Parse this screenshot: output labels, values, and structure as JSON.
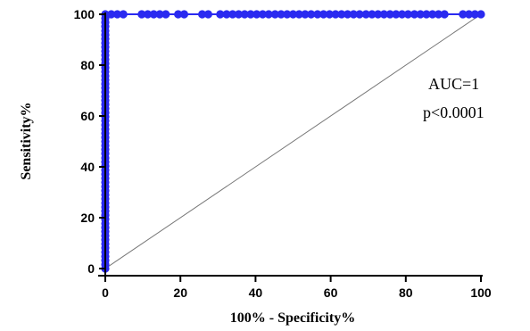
{
  "chart_data": {
    "type": "scatter",
    "title": "",
    "xlabel": "100% - Specificity%",
    "ylabel": "Sensitivity%",
    "xlim": [
      0,
      100
    ],
    "ylim": [
      0,
      100
    ],
    "x_ticks": [
      0,
      20,
      40,
      60,
      80,
      100
    ],
    "y_ticks": [
      0,
      20,
      40,
      60,
      80,
      100
    ],
    "grid": false,
    "legend": "none",
    "annotations": [
      "AUC=1",
      "p<0.0001"
    ],
    "reference_line": {
      "x": [
        0,
        100
      ],
      "y": [
        0,
        100
      ],
      "color": "#777777"
    },
    "series": [
      {
        "color": "#2a2af0",
        "points": [
          {
            "x": 0,
            "y": 0
          },
          {
            "x": 0,
            "y": 1.6
          },
          {
            "x": 0,
            "y": 3.2
          },
          {
            "x": 0,
            "y": 4.8
          },
          {
            "x": 0,
            "y": 6.5
          },
          {
            "x": 0,
            "y": 8.1
          },
          {
            "x": 0,
            "y": 9.7
          },
          {
            "x": 0,
            "y": 11.3
          },
          {
            "x": 0,
            "y": 12.9
          },
          {
            "x": 0,
            "y": 14.5
          },
          {
            "x": 0,
            "y": 16.1
          },
          {
            "x": 0,
            "y": 17.7
          },
          {
            "x": 0,
            "y": 19.4
          },
          {
            "x": 0,
            "y": 21.0
          },
          {
            "x": 0,
            "y": 22.6
          },
          {
            "x": 0,
            "y": 24.2
          },
          {
            "x": 0,
            "y": 25.8
          },
          {
            "x": 0,
            "y": 27.4
          },
          {
            "x": 0,
            "y": 29.0
          },
          {
            "x": 0,
            "y": 30.6
          },
          {
            "x": 0,
            "y": 32.3
          },
          {
            "x": 0,
            "y": 33.9
          },
          {
            "x": 0,
            "y": 35.5
          },
          {
            "x": 0,
            "y": 37.1
          },
          {
            "x": 0,
            "y": 38.7
          },
          {
            "x": 0,
            "y": 40.3
          },
          {
            "x": 0,
            "y": 41.9
          },
          {
            "x": 0,
            "y": 43.5
          },
          {
            "x": 0,
            "y": 45.2
          },
          {
            "x": 0,
            "y": 46.8
          },
          {
            "x": 0,
            "y": 48.4
          },
          {
            "x": 0,
            "y": 50.0
          },
          {
            "x": 0,
            "y": 51.6
          },
          {
            "x": 0,
            "y": 53.2
          },
          {
            "x": 0,
            "y": 54.8
          },
          {
            "x": 0,
            "y": 56.5
          },
          {
            "x": 0,
            "y": 58.1
          },
          {
            "x": 0,
            "y": 59.7
          },
          {
            "x": 0,
            "y": 61.3
          },
          {
            "x": 0,
            "y": 62.9
          },
          {
            "x": 0,
            "y": 64.5
          },
          {
            "x": 0,
            "y": 66.1
          },
          {
            "x": 0,
            "y": 67.7
          },
          {
            "x": 0,
            "y": 69.4
          },
          {
            "x": 0,
            "y": 71.0
          },
          {
            "x": 0,
            "y": 72.6
          },
          {
            "x": 0,
            "y": 74.2
          },
          {
            "x": 0,
            "y": 75.8
          },
          {
            "x": 0,
            "y": 77.4
          },
          {
            "x": 0,
            "y": 79.0
          },
          {
            "x": 0,
            "y": 80.6
          },
          {
            "x": 0,
            "y": 82.3
          },
          {
            "x": 0,
            "y": 83.9
          },
          {
            "x": 0,
            "y": 85.5
          },
          {
            "x": 0,
            "y": 87.1
          },
          {
            "x": 0,
            "y": 88.7
          },
          {
            "x": 0,
            "y": 90.3
          },
          {
            "x": 0,
            "y": 91.9
          },
          {
            "x": 0,
            "y": 93.5
          },
          {
            "x": 0,
            "y": 95.2
          },
          {
            "x": 0,
            "y": 96.8
          },
          {
            "x": 0,
            "y": 98.4
          },
          {
            "x": 0,
            "y": 100
          },
          {
            "x": 1.6,
            "y": 100
          },
          {
            "x": 3.2,
            "y": 100
          },
          {
            "x": 4.8,
            "y": 100
          },
          {
            "x": 9.7,
            "y": 100
          },
          {
            "x": 11.3,
            "y": 100
          },
          {
            "x": 12.9,
            "y": 100
          },
          {
            "x": 14.5,
            "y": 100
          },
          {
            "x": 16.1,
            "y": 100
          },
          {
            "x": 19.4,
            "y": 100
          },
          {
            "x": 21.0,
            "y": 100
          },
          {
            "x": 25.8,
            "y": 100
          },
          {
            "x": 27.4,
            "y": 100
          },
          {
            "x": 30.6,
            "y": 100
          },
          {
            "x": 32.3,
            "y": 100
          },
          {
            "x": 33.9,
            "y": 100
          },
          {
            "x": 35.5,
            "y": 100
          },
          {
            "x": 37.1,
            "y": 100
          },
          {
            "x": 38.7,
            "y": 100
          },
          {
            "x": 40.3,
            "y": 100
          },
          {
            "x": 41.9,
            "y": 100
          },
          {
            "x": 43.5,
            "y": 100
          },
          {
            "x": 45.2,
            "y": 100
          },
          {
            "x": 46.8,
            "y": 100
          },
          {
            "x": 48.4,
            "y": 100
          },
          {
            "x": 50.0,
            "y": 100
          },
          {
            "x": 51.6,
            "y": 100
          },
          {
            "x": 53.2,
            "y": 100
          },
          {
            "x": 54.8,
            "y": 100
          },
          {
            "x": 56.5,
            "y": 100
          },
          {
            "x": 58.1,
            "y": 100
          },
          {
            "x": 59.7,
            "y": 100
          },
          {
            "x": 61.3,
            "y": 100
          },
          {
            "x": 62.9,
            "y": 100
          },
          {
            "x": 64.5,
            "y": 100
          },
          {
            "x": 66.1,
            "y": 100
          },
          {
            "x": 67.7,
            "y": 100
          },
          {
            "x": 69.4,
            "y": 100
          },
          {
            "x": 71.0,
            "y": 100
          },
          {
            "x": 72.6,
            "y": 100
          },
          {
            "x": 74.2,
            "y": 100
          },
          {
            "x": 75.8,
            "y": 100
          },
          {
            "x": 77.4,
            "y": 100
          },
          {
            "x": 79.0,
            "y": 100
          },
          {
            "x": 80.6,
            "y": 100
          },
          {
            "x": 82.3,
            "y": 100
          },
          {
            "x": 83.9,
            "y": 100
          },
          {
            "x": 85.5,
            "y": 100
          },
          {
            "x": 87.1,
            "y": 100
          },
          {
            "x": 88.7,
            "y": 100
          },
          {
            "x": 90.3,
            "y": 100
          },
          {
            "x": 95.2,
            "y": 100
          },
          {
            "x": 96.8,
            "y": 100
          },
          {
            "x": 98.4,
            "y": 100
          },
          {
            "x": 100,
            "y": 100
          }
        ]
      }
    ]
  }
}
